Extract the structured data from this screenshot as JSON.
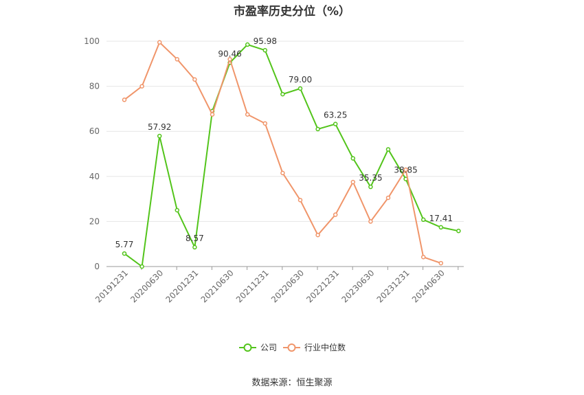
{
  "title": "市盈率历史分位（%）",
  "source": "数据来源：恒生聚源",
  "colors": {
    "company": "#52c41a",
    "industry": "#f0956a",
    "grid": "#e6e6e6",
    "axis": "#999999"
  },
  "legend": {
    "placement": "bottom-center",
    "company": "公司",
    "industry": "行业中位数"
  },
  "chart_data": {
    "type": "line",
    "title": "市盈率历史分位（%）",
    "ylim": [
      0,
      100
    ],
    "yticks": [
      0,
      20,
      40,
      60,
      80,
      100
    ],
    "grid": true,
    "x": [
      "20191231",
      "20200331",
      "20200630",
      "20200930",
      "20201231",
      "20210331",
      "20210630",
      "20210930",
      "20211231",
      "20220331",
      "20220630",
      "20220930",
      "20221231",
      "20230331",
      "20230630",
      "20230930",
      "20231231",
      "20240331",
      "20240630",
      "20240930"
    ],
    "xtick_labels": [
      "20191231",
      "20200630",
      "20201231",
      "20210630",
      "20211231",
      "20220630",
      "20221231",
      "20230630",
      "20231231",
      "20240630"
    ],
    "series": [
      {
        "name": "公司",
        "color": "#52c41a",
        "values": [
          5.77,
          0,
          57.92,
          25,
          8.57,
          69,
          90.46,
          98.5,
          95.98,
          76.5,
          79.0,
          61,
          63.25,
          48,
          35.35,
          52,
          38.85,
          20.8,
          17.41,
          15.8
        ],
        "labels": {
          "0": "5.77",
          "2": "57.92",
          "4": "8.57",
          "6": "90.46",
          "8": "95.98",
          "10": "79.00",
          "12": "63.25",
          "14": "35.35",
          "16": "38.85",
          "18": "17.41"
        }
      },
      {
        "name": "行业中位数",
        "color": "#f0956a",
        "values": [
          74,
          80,
          99.5,
          92,
          83,
          67.5,
          92,
          67.5,
          63.5,
          41.5,
          29.5,
          14,
          23,
          37.5,
          20,
          30.5,
          43,
          4.2,
          1.5,
          null
        ]
      }
    ]
  }
}
